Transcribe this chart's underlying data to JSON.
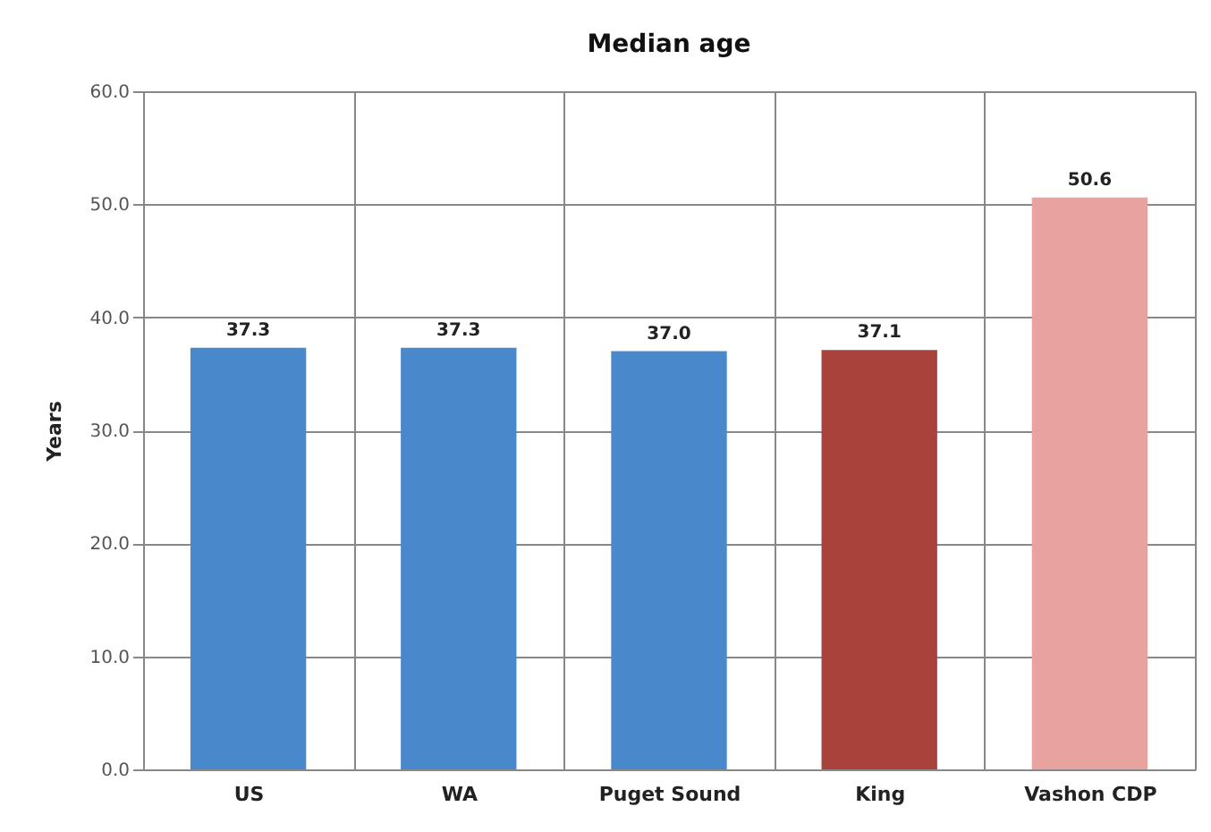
{
  "chart_data": {
    "type": "bar",
    "title": "Median age",
    "ylabel": "Years",
    "categories": [
      "US",
      "WA",
      "Puget Sound",
      "King",
      "Vashon CDP"
    ],
    "values": [
      37.3,
      37.3,
      37.0,
      37.1,
      50.6
    ],
    "value_labels": [
      "37.3",
      "37.3",
      "37.0",
      "37.1",
      "50.6"
    ],
    "colors": [
      "#4a88cc",
      "#4a88cc",
      "#4a88cc",
      "#a8423a",
      "#e8a2a0"
    ],
    "ylim": [
      0,
      60
    ],
    "yticks": [
      {
        "value": 0,
        "label": "0.0"
      },
      {
        "value": 10,
        "label": "10.0"
      },
      {
        "value": 20,
        "label": "20.0"
      },
      {
        "value": 30,
        "label": "30.0"
      },
      {
        "value": 40,
        "label": "40.0"
      },
      {
        "value": 50,
        "label": "50.0"
      },
      {
        "value": 60,
        "label": "60.0"
      }
    ],
    "grid": true
  }
}
